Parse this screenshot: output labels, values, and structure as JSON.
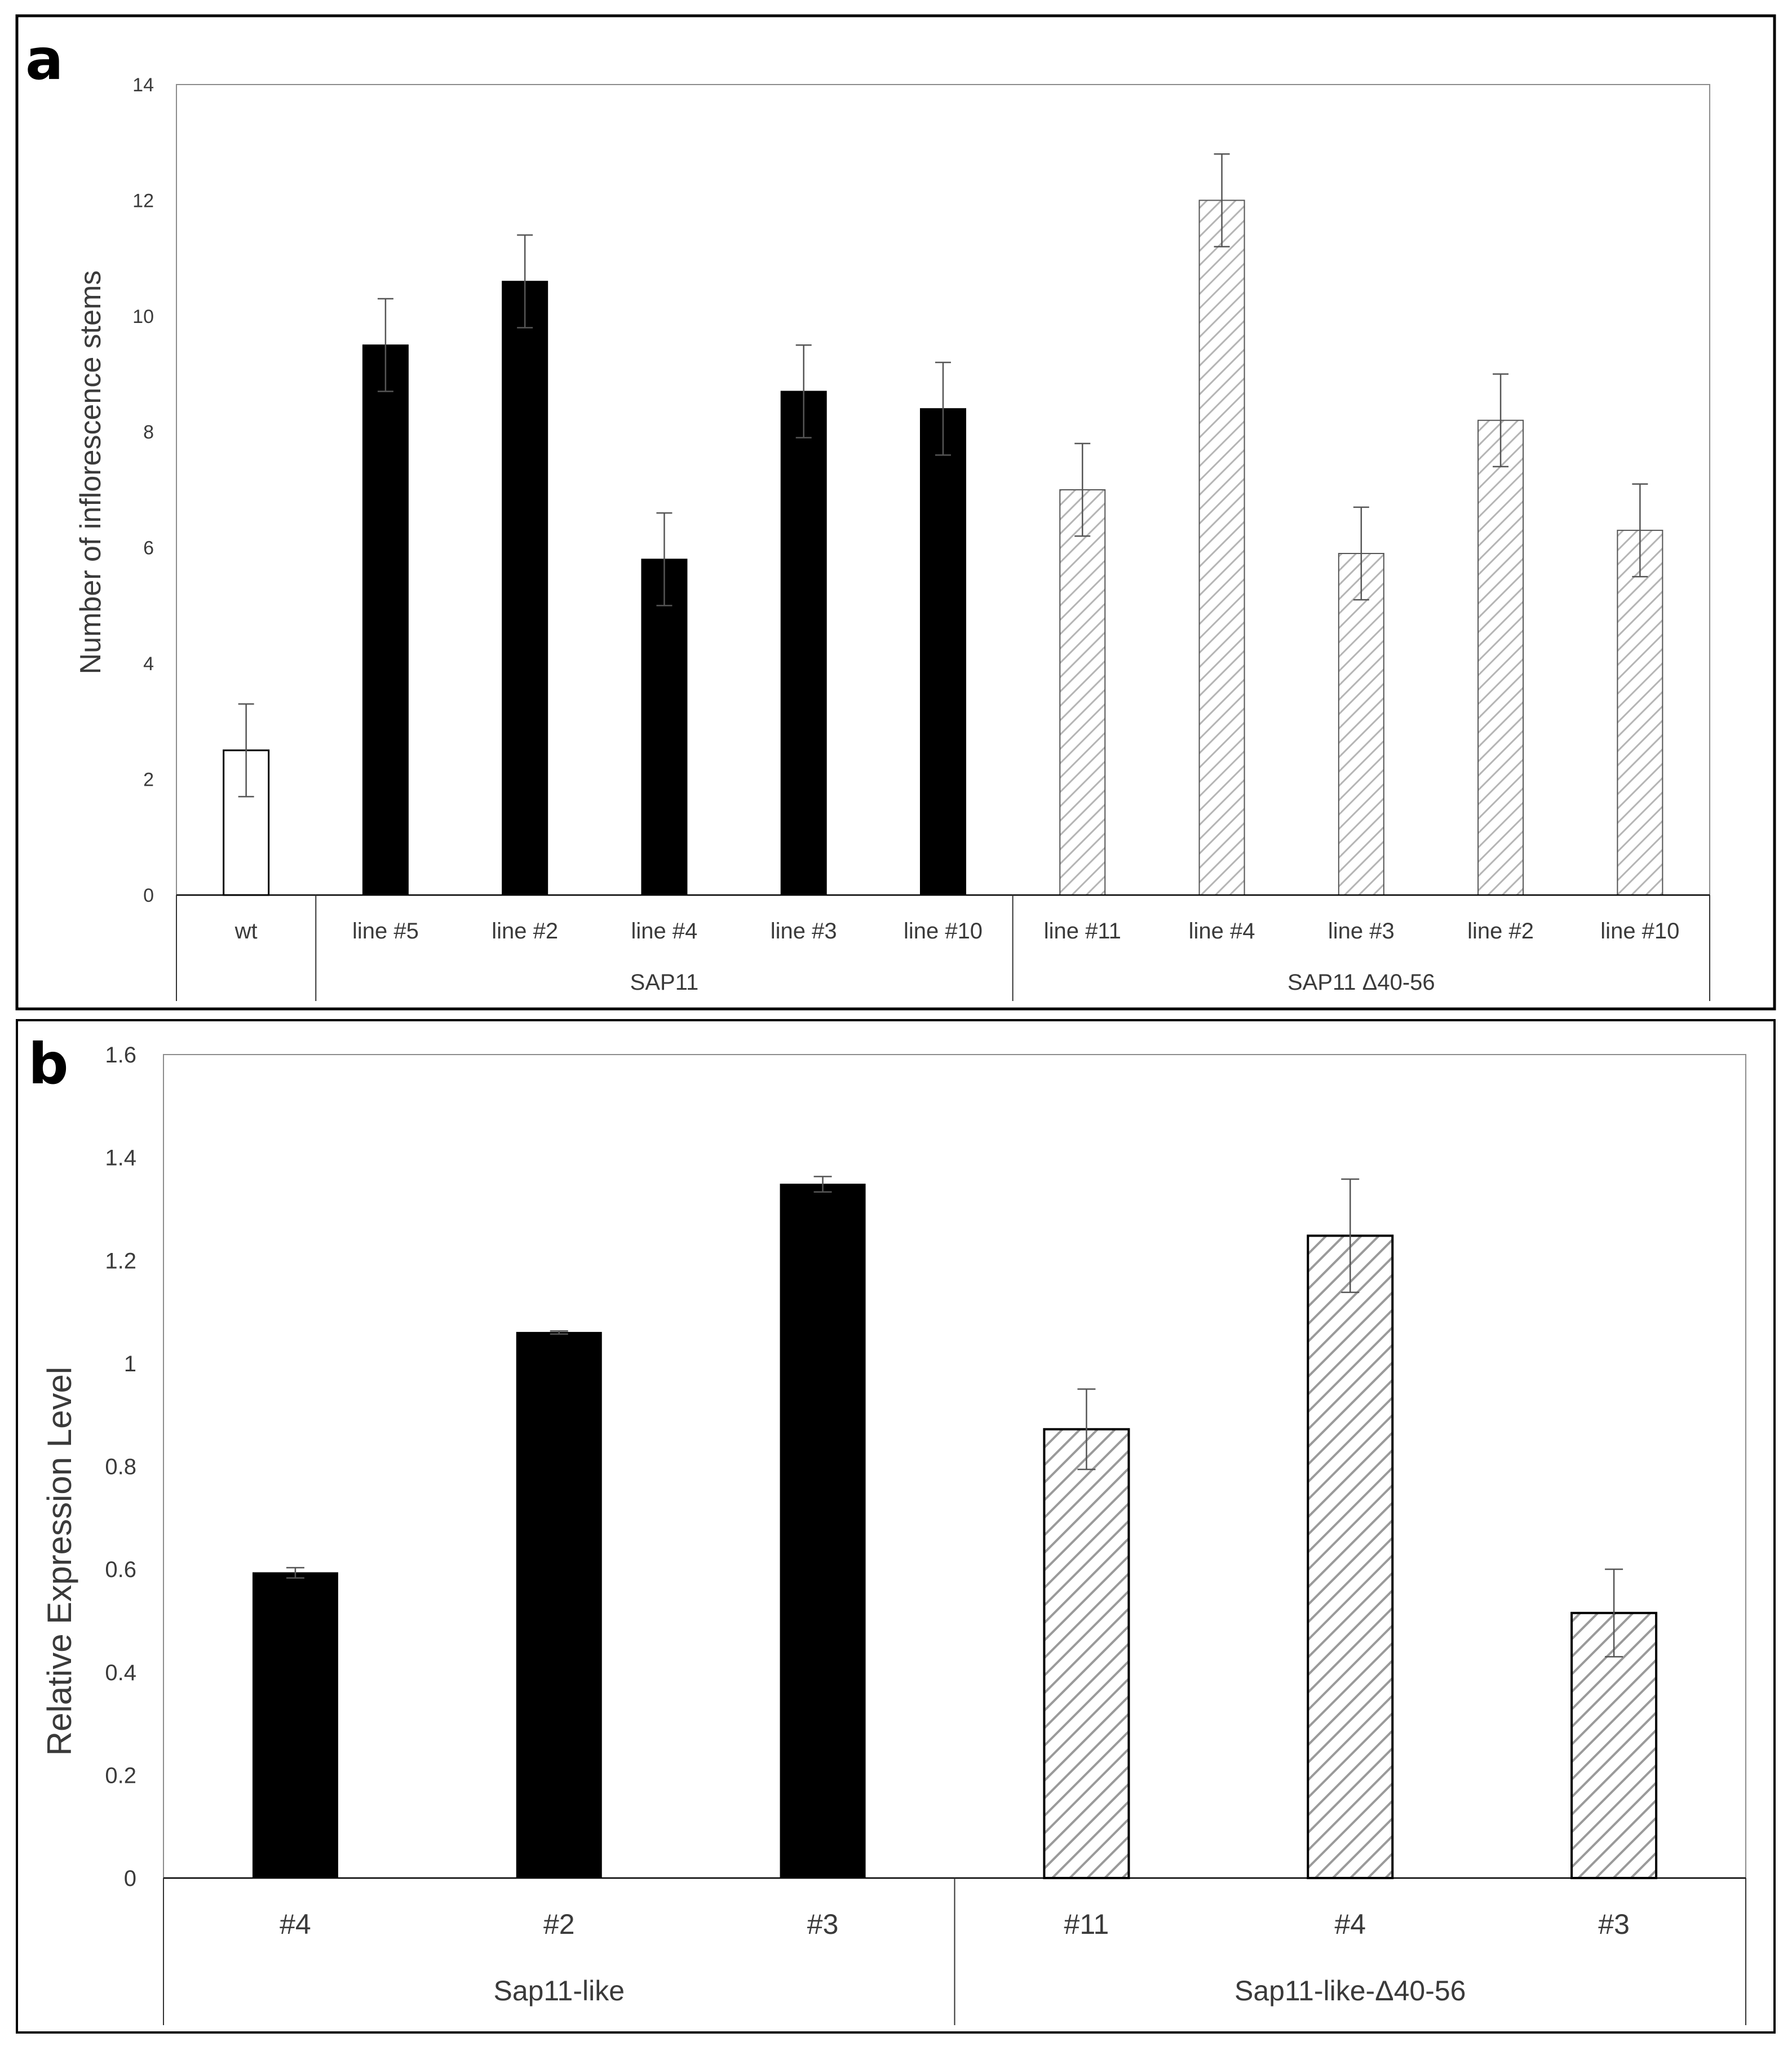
{
  "chart_data": [
    {
      "panel_label": "a",
      "type": "bar",
      "ylabel": "Number of inflorescence stems",
      "ylim": [
        0,
        14
      ],
      "yticks": [
        0,
        2,
        4,
        6,
        8,
        10,
        12,
        14
      ],
      "ytick_labels": [
        "0",
        "2",
        "4",
        "6",
        "8",
        "10",
        "12",
        "14"
      ],
      "categories": [
        "wt",
        "line #5",
        "line #2",
        "line #4",
        "line #3",
        "line #10",
        "line #11",
        "line #4",
        "line #3",
        "line #2",
        "line #10"
      ],
      "values": [
        2.5,
        9.5,
        10.6,
        5.8,
        8.7,
        8.4,
        7.0,
        12.0,
        5.9,
        8.2,
        6.3
      ],
      "errors": [
        0.8,
        0.8,
        0.8,
        0.8,
        0.8,
        0.8,
        0.8,
        0.8,
        0.8,
        0.8,
        0.8
      ],
      "styles": [
        "open",
        "solid",
        "solid",
        "solid",
        "solid",
        "solid",
        "hatched",
        "hatched",
        "hatched",
        "hatched",
        "hatched"
      ],
      "groups": [
        {
          "label": "",
          "start": 0,
          "end": 0
        },
        {
          "label": "SAP11",
          "start": 1,
          "end": 5
        },
        {
          "label": "SAP11 Δ40-56",
          "start": 6,
          "end": 10
        }
      ]
    },
    {
      "panel_label": "b",
      "type": "bar",
      "ylabel": "Relative Expression Level",
      "ylim": [
        0,
        1.6
      ],
      "yticks": [
        0,
        0.2,
        0.4,
        0.6,
        0.8,
        1.0,
        1.2,
        1.4,
        1.6
      ],
      "ytick_labels": [
        "0",
        "0.2",
        "0.4",
        "0.6",
        "0.8",
        "1",
        "1.2",
        "1.4",
        "1.6"
      ],
      "categories": [
        "#4",
        "#2",
        "#3",
        "#11",
        "#4",
        "#3"
      ],
      "values": [
        0.593,
        1.06,
        1.348,
        0.872,
        1.248,
        0.515
      ],
      "errors": [
        0.01,
        0.003,
        0.015,
        0.078,
        0.11,
        0.085
      ],
      "styles": [
        "solid",
        "solid",
        "solid",
        "hatched",
        "hatched",
        "hatched"
      ],
      "groups": [
        {
          "label": "Sap11-like",
          "start": 0,
          "end": 2
        },
        {
          "label": "Sap11-like-Δ40-56",
          "start": 3,
          "end": 5
        }
      ]
    }
  ]
}
